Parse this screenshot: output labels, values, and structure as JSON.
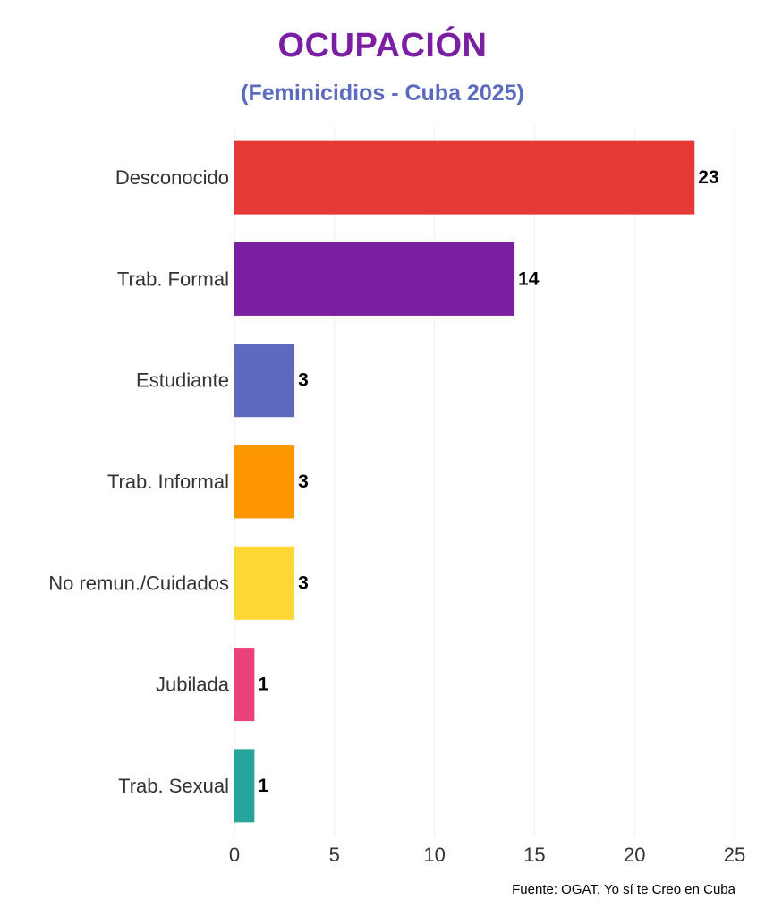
{
  "chart_data": {
    "type": "bar",
    "orientation": "horizontal",
    "title": "OCUPACIÓN",
    "subtitle": "(Feminicidios - Cuba 2025)",
    "categories": [
      "Desconocido",
      "Trab. Formal",
      "Estudiante",
      "Trab. Informal",
      "No remun./Cuidados",
      "Jubilada",
      "Trab. Sexual"
    ],
    "values": [
      23,
      14,
      3,
      3,
      3,
      1,
      1
    ],
    "colors": [
      "#e53935",
      "#7b1fa2",
      "#5c6bc0",
      "#ff9800",
      "#fdd835",
      "#ec407a",
      "#26a69a"
    ],
    "xlim": [
      0,
      25
    ],
    "xticks": [
      0,
      5,
      10,
      15,
      20,
      25
    ],
    "grid": true,
    "source": "Fuente: OGAT, Yo sí te Creo en Cuba"
  }
}
